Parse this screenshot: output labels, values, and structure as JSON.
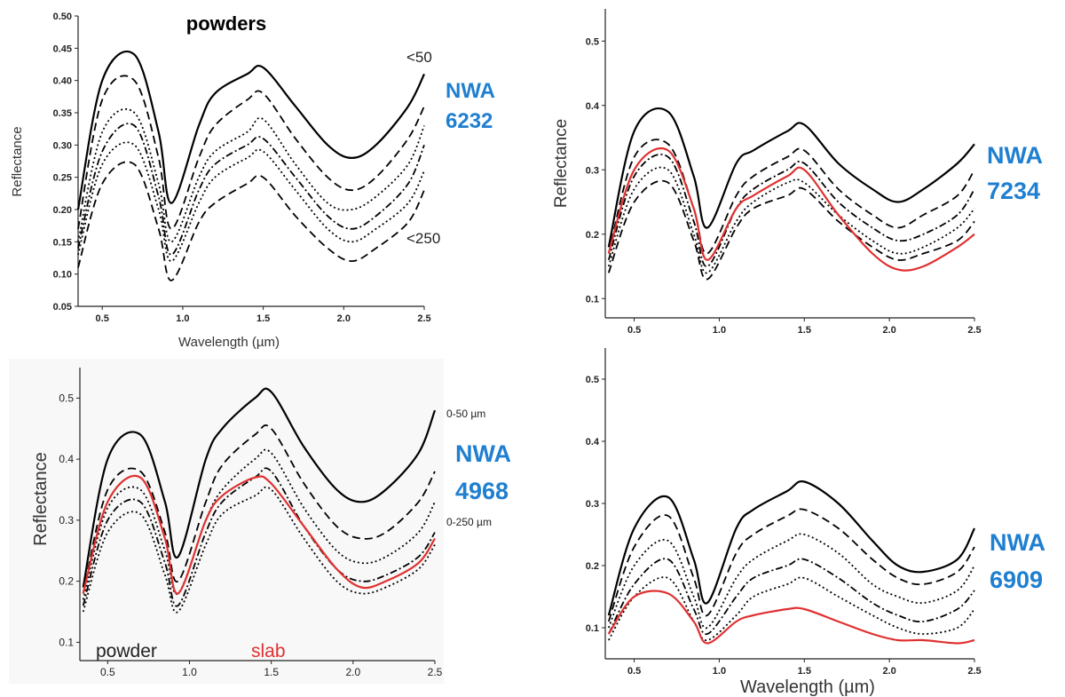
{
  "colors": {
    "sample_label": "#1f7fd0",
    "slab": "#e03030",
    "powder": "#000000"
  },
  "chart_data": [
    {
      "type": "line",
      "title": "powders",
      "xlabel": "Wavelength (µm)",
      "ylabel": "Reflectance",
      "xlim": [
        0.35,
        2.5
      ],
      "ylim": [
        0.05,
        0.5
      ],
      "xticks": [
        "0.5",
        "1.0",
        "1.5",
        "2.0",
        "2.5"
      ],
      "yticks": [
        "0.05",
        "0.10",
        "0.15",
        "0.20",
        "0.25",
        "0.30",
        "0.35",
        "0.40",
        "0.45",
        "0.50"
      ],
      "sample_label": [
        "NWA",
        "6232"
      ],
      "annotations": [
        "<50",
        "<250"
      ],
      "series": [
        {
          "style": "solid",
          "values": [
            0.2,
            0.4,
            0.44,
            0.32,
            0.21,
            0.33,
            0.38,
            0.41,
            0.42,
            0.36,
            0.3,
            0.28,
            0.3,
            0.36,
            0.41
          ]
        },
        {
          "style": "dash",
          "values": [
            0.17,
            0.37,
            0.4,
            0.28,
            0.17,
            0.28,
            0.33,
            0.37,
            0.38,
            0.31,
            0.25,
            0.23,
            0.25,
            0.31,
            0.36
          ]
        },
        {
          "style": "dot",
          "values": [
            0.15,
            0.32,
            0.35,
            0.24,
            0.15,
            0.25,
            0.29,
            0.32,
            0.34,
            0.27,
            0.21,
            0.2,
            0.22,
            0.27,
            0.33
          ]
        },
        {
          "style": "dashdot",
          "values": [
            0.14,
            0.29,
            0.33,
            0.22,
            0.13,
            0.23,
            0.27,
            0.3,
            0.31,
            0.25,
            0.19,
            0.17,
            0.19,
            0.24,
            0.3
          ]
        },
        {
          "style": "dot",
          "values": [
            0.13,
            0.27,
            0.3,
            0.2,
            0.12,
            0.21,
            0.25,
            0.28,
            0.29,
            0.23,
            0.17,
            0.15,
            0.17,
            0.21,
            0.26
          ]
        },
        {
          "style": "dash",
          "values": [
            0.11,
            0.24,
            0.27,
            0.17,
            0.09,
            0.18,
            0.21,
            0.24,
            0.25,
            0.19,
            0.14,
            0.12,
            0.14,
            0.18,
            0.23
          ]
        }
      ]
    },
    {
      "type": "line",
      "xlabel": "",
      "ylabel": "Reflectance",
      "xlim": [
        0.33,
        2.5
      ],
      "ylim": [
        0.07,
        0.55
      ],
      "xticks": [
        "0.5",
        "1.0",
        "1.5",
        "2.0",
        "2.5"
      ],
      "yticks": [
        "0.1",
        "0.2",
        "0.3",
        "0.4",
        "0.5"
      ],
      "sample_label": [
        "NWA",
        "7234"
      ],
      "series": [
        {
          "style": "solid",
          "values": [
            0.18,
            0.36,
            0.39,
            0.29,
            0.21,
            0.31,
            0.33,
            0.36,
            0.37,
            0.31,
            0.27,
            0.25,
            0.27,
            0.31,
            0.34
          ]
        },
        {
          "style": "dash",
          "values": [
            0.17,
            0.32,
            0.34,
            0.24,
            0.17,
            0.26,
            0.29,
            0.32,
            0.33,
            0.27,
            0.23,
            0.21,
            0.23,
            0.26,
            0.3
          ]
        },
        {
          "style": "dashdot",
          "values": [
            0.16,
            0.29,
            0.32,
            0.22,
            0.15,
            0.24,
            0.27,
            0.3,
            0.31,
            0.25,
            0.21,
            0.19,
            0.2,
            0.23,
            0.27
          ]
        },
        {
          "style": "dot",
          "values": [
            0.15,
            0.27,
            0.3,
            0.2,
            0.14,
            0.22,
            0.25,
            0.28,
            0.28,
            0.23,
            0.19,
            0.17,
            0.18,
            0.21,
            0.24
          ]
        },
        {
          "style": "dash",
          "values": [
            0.14,
            0.25,
            0.28,
            0.19,
            0.13,
            0.21,
            0.24,
            0.26,
            0.27,
            0.22,
            0.18,
            0.16,
            0.17,
            0.19,
            0.22
          ]
        },
        {
          "style": "slab",
          "name": "slab",
          "values": [
            0.17,
            0.3,
            0.33,
            0.24,
            0.16,
            0.24,
            0.26,
            0.29,
            0.3,
            0.23,
            0.17,
            0.145,
            0.15,
            0.18,
            0.2
          ]
        }
      ]
    },
    {
      "type": "line",
      "xlabel": "",
      "ylabel": "Reflectance",
      "xlim": [
        0.33,
        2.5
      ],
      "ylim": [
        0.07,
        0.55
      ],
      "xticks": [
        "0.5",
        "1.0",
        "1.5",
        "2.0",
        "2.5"
      ],
      "yticks": [
        "0.1",
        "0.2",
        "0.3",
        "0.4",
        "0.5"
      ],
      "sample_label": [
        "NWA",
        "4968"
      ],
      "annotations": [
        "0-50 µm",
        "0-250 µm"
      ],
      "legend": {
        "powder": "powder",
        "slab": "slab"
      },
      "series": [
        {
          "style": "solid",
          "values": [
            0.19,
            0.4,
            0.44,
            0.33,
            0.24,
            0.4,
            0.45,
            0.5,
            0.51,
            0.42,
            0.35,
            0.33,
            0.35,
            0.41,
            0.48
          ]
        },
        {
          "style": "dash",
          "values": [
            0.18,
            0.35,
            0.38,
            0.28,
            0.2,
            0.33,
            0.39,
            0.44,
            0.45,
            0.36,
            0.29,
            0.27,
            0.28,
            0.33,
            0.38
          ]
        },
        {
          "style": "dot",
          "values": [
            0.17,
            0.32,
            0.35,
            0.25,
            0.18,
            0.3,
            0.35,
            0.4,
            0.41,
            0.32,
            0.25,
            0.23,
            0.24,
            0.28,
            0.33
          ]
        },
        {
          "style": "dashdot",
          "values": [
            0.16,
            0.3,
            0.33,
            0.23,
            0.16,
            0.28,
            0.33,
            0.37,
            0.38,
            0.29,
            0.22,
            0.2,
            0.21,
            0.24,
            0.28
          ]
        },
        {
          "style": "dot",
          "values": [
            0.15,
            0.28,
            0.31,
            0.21,
            0.15,
            0.26,
            0.31,
            0.34,
            0.35,
            0.27,
            0.2,
            0.18,
            0.19,
            0.22,
            0.26
          ]
        },
        {
          "style": "slab",
          "name": "slab",
          "values": [
            0.18,
            0.33,
            0.37,
            0.27,
            0.18,
            0.3,
            0.34,
            0.37,
            0.36,
            0.29,
            0.22,
            0.19,
            0.2,
            0.23,
            0.27
          ]
        }
      ]
    },
    {
      "type": "line",
      "xlabel": "Wavelength (µm)",
      "ylabel": "",
      "xlim": [
        0.33,
        2.5
      ],
      "ylim": [
        0.05,
        0.55
      ],
      "xticks": [
        "0.5",
        "1.0",
        "1.5",
        "2.0",
        "2.5"
      ],
      "yticks": [
        "0.1",
        "0.2",
        "0.3",
        "0.4",
        "0.5"
      ],
      "sample_label": [
        "NWA",
        "6909"
      ],
      "series": [
        {
          "style": "solid",
          "values": [
            0.12,
            0.26,
            0.31,
            0.21,
            0.14,
            0.26,
            0.29,
            0.32,
            0.335,
            0.3,
            0.24,
            0.2,
            0.19,
            0.21,
            0.26
          ]
        },
        {
          "style": "dash",
          "values": [
            0.11,
            0.23,
            0.28,
            0.18,
            0.12,
            0.22,
            0.25,
            0.28,
            0.29,
            0.26,
            0.21,
            0.18,
            0.17,
            0.19,
            0.23
          ]
        },
        {
          "style": "dot",
          "values": [
            0.1,
            0.2,
            0.24,
            0.15,
            0.1,
            0.18,
            0.21,
            0.24,
            0.25,
            0.22,
            0.17,
            0.15,
            0.14,
            0.16,
            0.2
          ]
        },
        {
          "style": "dashdot",
          "values": [
            0.09,
            0.17,
            0.21,
            0.13,
            0.09,
            0.15,
            0.18,
            0.2,
            0.21,
            0.18,
            0.14,
            0.12,
            0.11,
            0.13,
            0.16
          ]
        },
        {
          "style": "dot",
          "values": [
            0.08,
            0.15,
            0.18,
            0.11,
            0.08,
            0.12,
            0.15,
            0.17,
            0.18,
            0.15,
            0.12,
            0.1,
            0.09,
            0.1,
            0.13
          ]
        },
        {
          "style": "slab",
          "name": "slab",
          "values": [
            0.09,
            0.15,
            0.155,
            0.11,
            0.075,
            0.11,
            0.12,
            0.13,
            0.13,
            0.11,
            0.09,
            0.08,
            0.08,
            0.075,
            0.08
          ]
        }
      ]
    }
  ]
}
